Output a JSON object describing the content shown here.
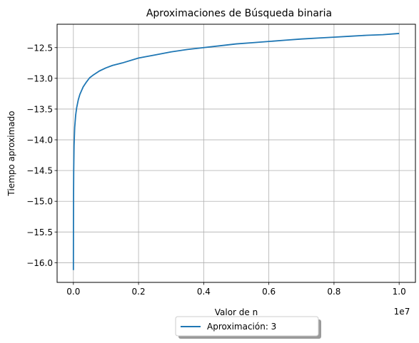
{
  "chart_data": {
    "type": "line",
    "title": "Aproximaciones de Búsqueda binaria",
    "xlabel": "Valor de n",
    "ylabel": "Tiempo aproximado",
    "x_offset_label": "1e7",
    "xlim": [
      -0.05,
      1.05
    ],
    "ylim": [
      -16.32,
      -12.12
    ],
    "x_ticks": [
      0.0,
      0.2,
      0.4,
      0.6,
      0.8,
      1.0
    ],
    "x_tick_labels": [
      "0.0",
      "0.2",
      "0.4",
      "0.6",
      "0.8",
      "1.0"
    ],
    "y_ticks": [
      -16.0,
      -15.5,
      -15.0,
      -14.5,
      -14.0,
      -13.5,
      -13.0,
      -12.5
    ],
    "y_tick_labels": [
      "−16.0",
      "−15.5",
      "−15.0",
      "−14.5",
      "−14.0",
      "−13.5",
      "−13.0",
      "−12.5"
    ],
    "grid": true,
    "legend_position": "bottom-center-outside",
    "series": [
      {
        "name": "Aproximación: 3",
        "color": "#1f77b4",
        "x": [
          0,
          0.0002,
          0.0005,
          0.001,
          0.002,
          0.004,
          0.007,
          0.01,
          0.015,
          0.02,
          0.03,
          0.04,
          0.05,
          0.06,
          0.08,
          0.1,
          0.12,
          0.15,
          0.2,
          0.25,
          0.3,
          0.35,
          0.4,
          0.45,
          0.5,
          0.55,
          0.6,
          0.65,
          0.7,
          0.75,
          0.8,
          0.85,
          0.9,
          0.95,
          1.0
        ],
        "y": [
          -16.12,
          -15.4,
          -14.9,
          -14.5,
          -14.1,
          -13.8,
          -13.6,
          -13.48,
          -13.35,
          -13.26,
          -13.14,
          -13.06,
          -12.99,
          -12.95,
          -12.88,
          -12.83,
          -12.79,
          -12.75,
          -12.67,
          -12.62,
          -12.57,
          -12.53,
          -12.5,
          -12.47,
          -12.44,
          -12.42,
          -12.4,
          -12.38,
          -12.36,
          -12.345,
          -12.33,
          -12.315,
          -12.3,
          -12.29,
          -12.27
        ]
      }
    ]
  }
}
